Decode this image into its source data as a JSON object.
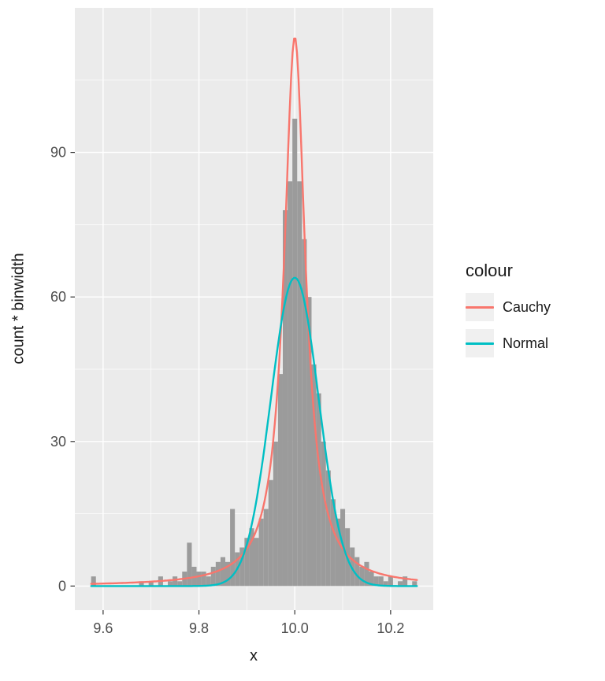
{
  "chart_data": {
    "type": "bar",
    "subtype": "histogram-with-density-curves",
    "title": "",
    "xlabel": "x",
    "ylabel": "count * binwidth",
    "x_domain": [
      9.541,
      10.289
    ],
    "y_domain": [
      -5,
      120
    ],
    "x_ticks": {
      "values": [
        9.6,
        9.8,
        10.0,
        10.2
      ],
      "labels": [
        "9.6",
        "9.8",
        "10.0",
        "10.2"
      ],
      "minor": [
        9.7,
        9.9,
        10.1
      ]
    },
    "y_ticks": {
      "values": [
        0,
        30,
        60,
        90
      ],
      "labels": [
        "0",
        "30",
        "60",
        "90"
      ],
      "minor": [
        15,
        45,
        75,
        105
      ]
    },
    "grid": "on",
    "histogram": {
      "fill": "#9B9B9B",
      "binwidth": 0.01,
      "first_center": 9.58,
      "step": 0.01,
      "heights": [
        2,
        0,
        0,
        0,
        0,
        0,
        0,
        0,
        0,
        0,
        1,
        0,
        1,
        0,
        2,
        0,
        1,
        2,
        1,
        3,
        9,
        4,
        3,
        3,
        2,
        4,
        5,
        6,
        5,
        16,
        7,
        8,
        10,
        12,
        10,
        14,
        16,
        22,
        30,
        44,
        78,
        84,
        97,
        84,
        72,
        60,
        46,
        40,
        30,
        24,
        18,
        14,
        16,
        12,
        8,
        6,
        4,
        5,
        3,
        2,
        2,
        1,
        2,
        0,
        1,
        2,
        0,
        1
      ]
    },
    "curves": [
      {
        "name": "Cauchy",
        "color": "#F8766D",
        "shape": "cauchy",
        "location": 10.0,
        "scale": 0.027,
        "peak": 114,
        "x_range": [
          9.575,
          10.255
        ]
      },
      {
        "name": "Normal",
        "color": "#00BFC4",
        "shape": "normal",
        "mean": 10.0,
        "sd": 0.05,
        "peak": 64,
        "x_range": [
          9.575,
          10.255
        ]
      }
    ],
    "legend": {
      "title": "colour",
      "position": "right",
      "entries": [
        "Cauchy",
        "Normal"
      ],
      "key_fill": "#F0F0F0"
    },
    "panel": {
      "bg": "#EBEBEB",
      "grid_major": "#FFFFFF",
      "grid_minor": "#FFFFFF",
      "tick_color": "#333333",
      "tick_label_color": "#4D4D4D"
    }
  }
}
